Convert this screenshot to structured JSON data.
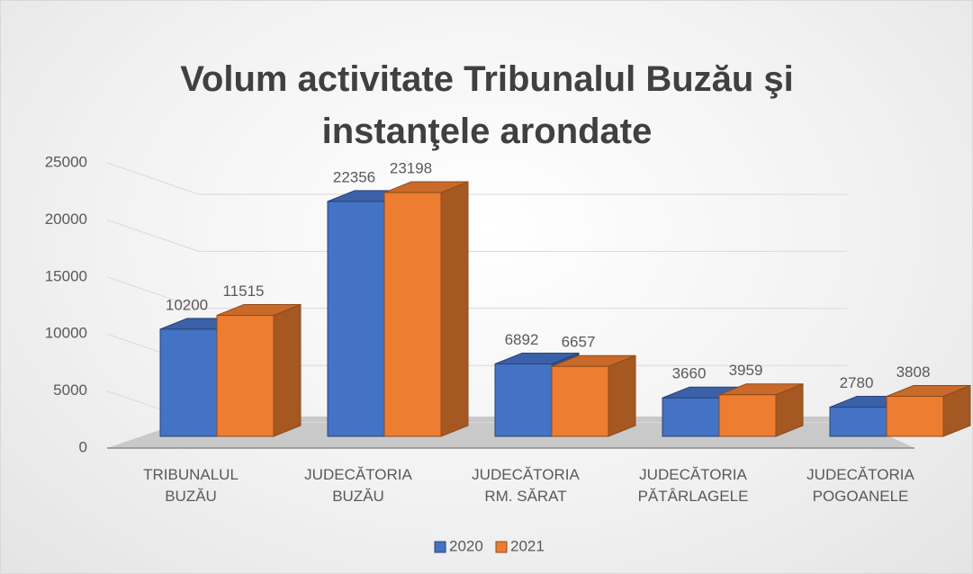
{
  "chart_data": {
    "type": "bar3d",
    "title": "Volum activitate Tribunalul Buzău şi instanţele arondate",
    "categories": [
      "TRIBUNALUL BUZĂU",
      "JUDECĂTORIA BUZĂU",
      "JUDECĂTORIA RM. SĂRAT",
      "JUDECĂTORIA PĂTÂRLAGELE",
      "JUDECĂTORIA POGOANELE"
    ],
    "series": [
      {
        "name": "2020",
        "color": "#4472c4",
        "values": [
          10200,
          22356,
          6892,
          3660,
          2780
        ]
      },
      {
        "name": "2021",
        "color": "#ed7d31",
        "values": [
          11515,
          23198,
          6657,
          3959,
          3808
        ]
      }
    ],
    "ylim": [
      0,
      25000
    ],
    "yticks": [
      0,
      5000,
      10000,
      15000,
      20000,
      25000
    ],
    "grid": true,
    "legend": "bottom"
  }
}
